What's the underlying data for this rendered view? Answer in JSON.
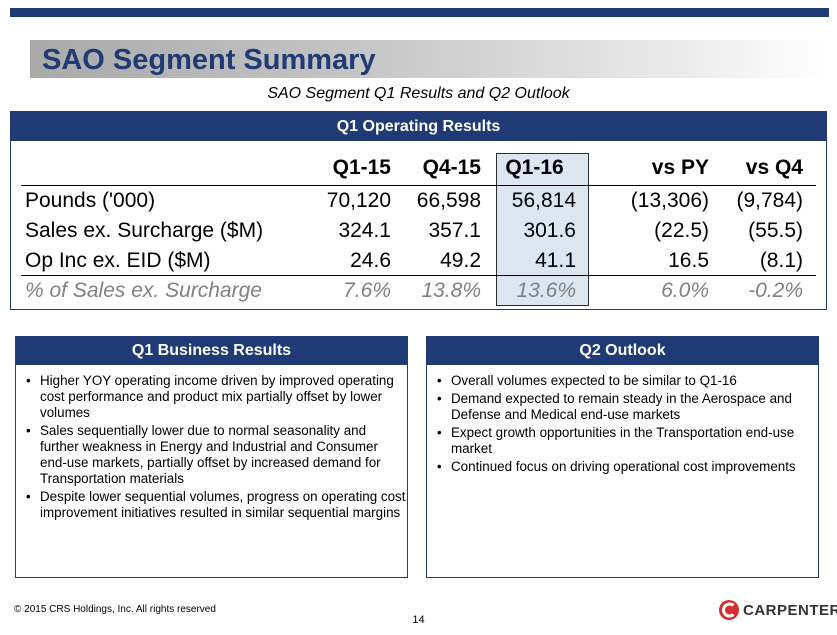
{
  "title": "SAO Segment Summary",
  "subtitle": "SAO Segment Q1 Results and Q2 Outlook",
  "results": {
    "header": "Q1 Operating Results",
    "columns": [
      "Q1-15",
      "Q4-15",
      "Q1-16",
      "vs PY",
      "vs Q4"
    ],
    "rows": [
      {
        "label": "Pounds ('000)",
        "values": [
          "70,120",
          "66,598",
          "56,814",
          "(13,306)",
          "(9,784)"
        ]
      },
      {
        "label": "Sales ex. Surcharge ($M)",
        "values": [
          "324.1",
          "357.1",
          "301.6",
          "(22.5)",
          "(55.5)"
        ]
      },
      {
        "label": "Op Inc ex. EID ($M)",
        "values": [
          "24.6",
          "49.2",
          "41.1",
          "16.5",
          "(8.1)"
        ]
      },
      {
        "label": "% of Sales ex. Surcharge",
        "values": [
          "7.6%",
          "13.8%",
          "13.6%",
          "6.0%",
          "-0.2%"
        ]
      }
    ]
  },
  "business": {
    "header": "Q1 Business Results",
    "bullets": [
      "Higher YOY operating income driven by improved operating cost performance and product mix partially offset by lower volumes",
      "Sales sequentially lower due to normal seasonality and further weakness in Energy and Industrial and Consumer end-use markets, partially offset by increased demand for Transportation materials",
      "Despite lower sequential volumes, progress on operating cost improvement initiatives resulted in similar sequential margins"
    ]
  },
  "outlook": {
    "header": "Q2 Outlook",
    "bullets": [
      "Overall volumes expected to be similar to Q1-16",
      "Demand expected to remain steady in the Aerospace and Defense and Medical end-use markets",
      "Expect growth opportunities in the Transportation end-use market",
      "Continued focus on driving operational cost improvements"
    ]
  },
  "footer": {
    "copyright": "© 2015 CRS Holdings, Inc.   All rights reserved",
    "page": "14",
    "brand": "CARPENTER"
  },
  "colors": {
    "navy": "#1f3a75",
    "highlight": "#dce6f1",
    "logo_red": "#d32f2f"
  }
}
